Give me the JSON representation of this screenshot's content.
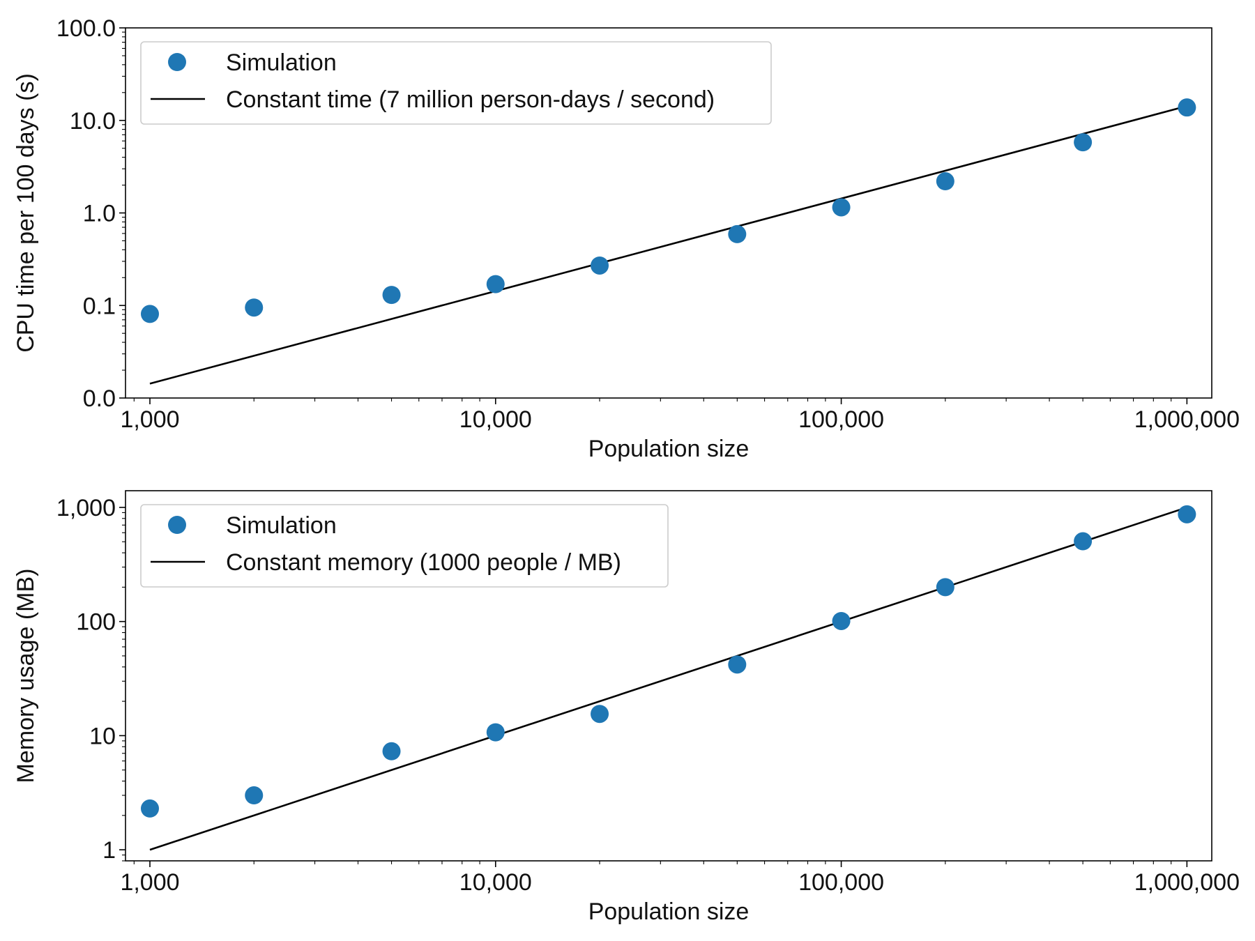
{
  "chart_data": [
    {
      "type": "scatter",
      "xlabel": "Population size",
      "ylabel": "CPU time per 100 days (s)",
      "xscale": "log",
      "yscale": "log",
      "xlim": [
        850,
        1180000
      ],
      "ylim": [
        0.01,
        100.0
      ],
      "x_ticks": [
        1000,
        10000,
        100000,
        1000000
      ],
      "x_tick_labels": [
        "1,000",
        "10,000",
        "100,000",
        "1,000,000"
      ],
      "y_ticks": [
        0.01,
        0.1,
        1.0,
        10.0,
        100.0
      ],
      "y_tick_labels": [
        "0.0",
        "0.1",
        "1.0",
        "10.0",
        "100.0"
      ],
      "grid": false,
      "legend_position": "top-left",
      "series": [
        {
          "name": "Simulation",
          "kind": "scatter",
          "color": "#1f77b4",
          "x": [
            1000,
            2000,
            5000,
            10000,
            20000,
            50000,
            100000,
            200000,
            500000,
            1000000
          ],
          "y": [
            0.081,
            0.095,
            0.13,
            0.17,
            0.27,
            0.59,
            1.15,
            2.2,
            5.8,
            13.8
          ]
        },
        {
          "name": "Constant time (7 million person-days / second)",
          "kind": "line",
          "color": "#000000",
          "x": [
            1000,
            1000000
          ],
          "y": [
            0.0143,
            14.3
          ]
        }
      ]
    },
    {
      "type": "scatter",
      "xlabel": "Population size",
      "ylabel": "Memory usage (MB)",
      "xscale": "log",
      "yscale": "log",
      "xlim": [
        850,
        1180000
      ],
      "ylim": [
        0.8,
        1400
      ],
      "x_ticks": [
        1000,
        10000,
        100000,
        1000000
      ],
      "x_tick_labels": [
        "1,000",
        "10,000",
        "100,000",
        "1,000,000"
      ],
      "y_ticks": [
        1,
        10,
        100,
        1000
      ],
      "y_tick_labels": [
        "1",
        "10",
        "100",
        "1,000"
      ],
      "grid": false,
      "legend_position": "top-left",
      "series": [
        {
          "name": "Simulation",
          "kind": "scatter",
          "color": "#1f77b4",
          "x": [
            1000,
            2000,
            5000,
            10000,
            20000,
            50000,
            100000,
            200000,
            500000,
            1000000
          ],
          "y": [
            2.3,
            3.0,
            7.3,
            10.7,
            15.5,
            42,
            101,
            200,
            505,
            870
          ]
        },
        {
          "name": "Constant memory (1000 people / MB)",
          "kind": "line",
          "color": "#000000",
          "x": [
            1000,
            1000000
          ],
          "y": [
            1,
            1000
          ]
        }
      ]
    }
  ]
}
